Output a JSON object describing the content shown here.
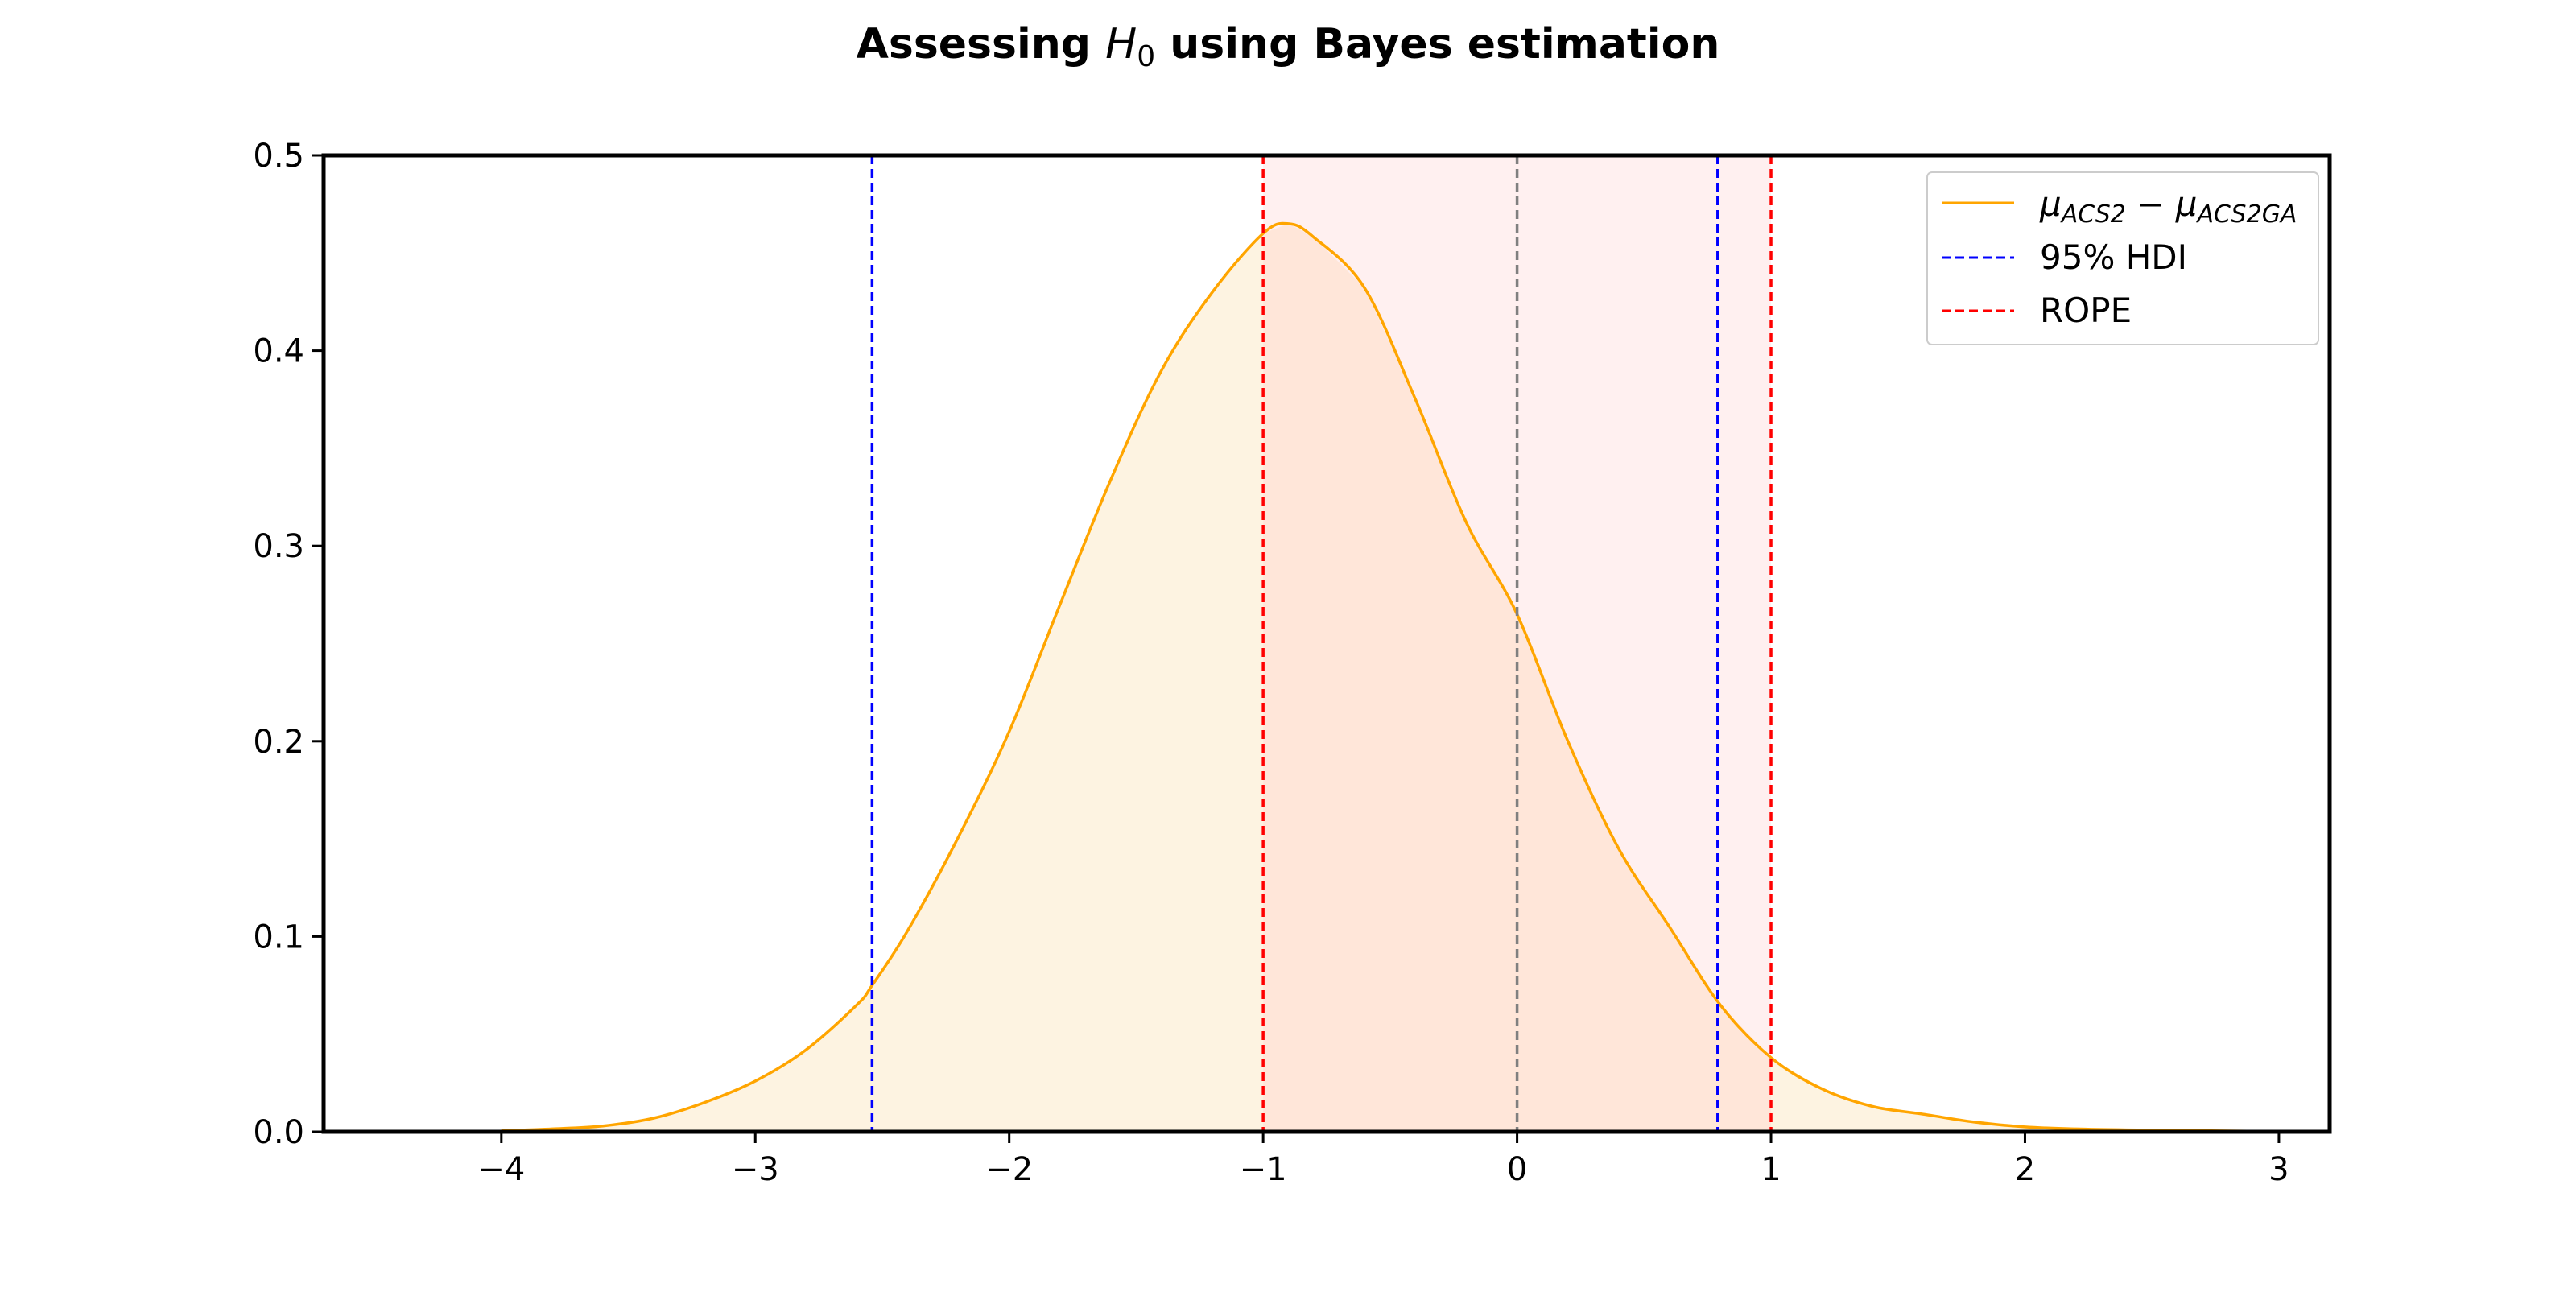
{
  "chart_data": {
    "type": "area",
    "title_parts": {
      "pre": "Assessing ",
      "symbol": "H",
      "sub": "0",
      "post": " using Bayes estimation"
    },
    "xlabel": "",
    "ylabel": "",
    "xlim": [
      -4.7,
      3.2
    ],
    "ylim": [
      0,
      0.5
    ],
    "x_ticks": [
      -4,
      -3,
      -2,
      -1,
      0,
      1,
      2,
      3
    ],
    "x_tick_labels": [
      "−4",
      "−3",
      "−2",
      "−1",
      "0",
      "1",
      "2",
      "3"
    ],
    "y_ticks": [
      0.0,
      0.1,
      0.2,
      0.3,
      0.4,
      0.5
    ],
    "y_tick_labels": [
      "0.0",
      "0.1",
      "0.2",
      "0.3",
      "0.4",
      "0.5"
    ],
    "grid": false,
    "legend_position": "top-right",
    "colors": {
      "density": "#ffa500",
      "density_fill": "#fdf3e1",
      "rope_fill": "#fff0f0",
      "overlap_fill": "#ffe6d9",
      "hdi": "#0000ff",
      "rope": "#ff0000",
      "zero": "#808080"
    },
    "series": [
      {
        "kind": "density",
        "legend": {
          "mu": "μ",
          "sub1": "ACS2",
          "minus": " − ",
          "sub2": "ACS2GA"
        },
        "x": [
          -4.0,
          -3.8,
          -3.6,
          -3.4,
          -3.2,
          -3.0,
          -2.8,
          -2.6,
          -2.54,
          -2.4,
          -2.2,
          -2.0,
          -1.8,
          -1.6,
          -1.4,
          -1.2,
          -1.0,
          -0.9,
          -0.8,
          -0.6,
          -0.4,
          -0.2,
          0.0,
          0.2,
          0.4,
          0.6,
          0.8,
          1.0,
          1.2,
          1.4,
          1.6,
          1.8,
          2.0,
          2.2,
          2.4,
          2.6,
          2.8,
          3.0
        ],
        "y": [
          0.0005,
          0.0015,
          0.003,
          0.007,
          0.015,
          0.026,
          0.042,
          0.065,
          0.075,
          0.103,
          0.151,
          0.205,
          0.27,
          0.334,
          0.39,
          0.43,
          0.46,
          0.465,
          0.458,
          0.432,
          0.375,
          0.312,
          0.265,
          0.2,
          0.145,
          0.105,
          0.065,
          0.038,
          0.022,
          0.013,
          0.009,
          0.005,
          0.0025,
          0.0015,
          0.001,
          0.0007,
          0.0004,
          0.0002
        ]
      }
    ],
    "hdi": {
      "legend": "95% HDI",
      "low": -2.54,
      "high": 0.79
    },
    "rope": {
      "legend": "ROPE",
      "low": -1.0,
      "high": 1.0
    },
    "reference_line": 0
  }
}
